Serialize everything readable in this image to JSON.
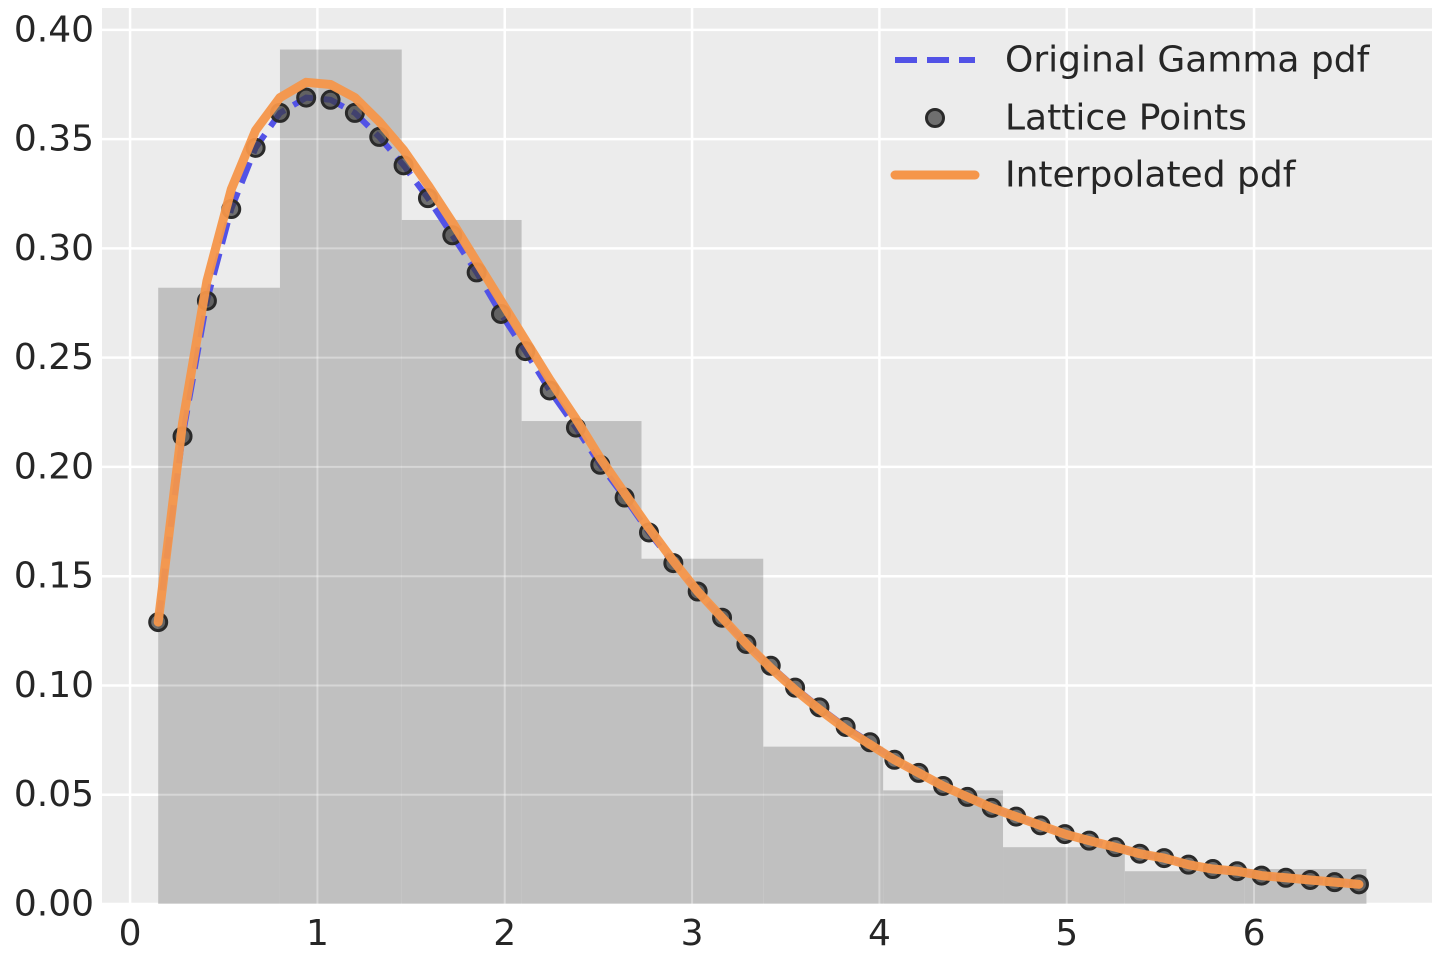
{
  "chart_data": {
    "type": "line",
    "title": "",
    "xlabel": "",
    "ylabel": "",
    "xlim": [
      -0.15,
      6.95
    ],
    "ylim": [
      0,
      0.41
    ],
    "grid": true,
    "legend_position": "top-right",
    "xticks": [
      0,
      1,
      2,
      3,
      4,
      5,
      6
    ],
    "xtick_labels": [
      "0",
      "1",
      "2",
      "3",
      "4",
      "5",
      "6"
    ],
    "yticks": [
      0,
      0.05,
      0.1,
      0.15,
      0.2,
      0.25,
      0.3,
      0.35,
      0.4
    ],
    "ytick_labels": [
      "0.00",
      "0.05",
      "0.10",
      "0.15",
      "0.20",
      "0.25",
      "0.30",
      "0.35",
      "0.40"
    ],
    "histogram": {
      "color": "#c0c0c0",
      "bins": [
        {
          "x0": 0.15,
          "x1": 0.8,
          "value": 0.282
        },
        {
          "x0": 0.8,
          "x1": 1.45,
          "value": 0.391
        },
        {
          "x0": 1.45,
          "x1": 2.09,
          "value": 0.313
        },
        {
          "x0": 2.09,
          "x1": 2.73,
          "value": 0.221
        },
        {
          "x0": 2.73,
          "x1": 3.38,
          "value": 0.158
        },
        {
          "x0": 3.38,
          "x1": 4.02,
          "value": 0.072
        },
        {
          "x0": 4.02,
          "x1": 4.66,
          "value": 0.052
        },
        {
          "x0": 4.66,
          "x1": 5.31,
          "value": 0.026
        },
        {
          "x0": 5.31,
          "x1": 5.95,
          "value": 0.015
        },
        {
          "x0": 5.95,
          "x1": 6.6,
          "value": 0.016
        }
      ]
    },
    "series": [
      {
        "name": "Original Gamma pdf",
        "style": "dashed",
        "color": "#5252e6",
        "x": [
          0.15,
          0.28,
          0.41,
          0.54,
          0.67,
          0.8,
          0.94,
          1.07,
          1.2,
          1.33,
          1.46,
          1.59,
          1.72,
          1.85,
          1.98,
          2.11,
          2.24,
          2.38,
          2.51,
          2.64,
          2.77,
          2.9,
          3.03,
          3.16,
          3.29,
          3.42,
          3.55,
          3.68,
          3.82,
          3.95,
          4.08,
          4.21,
          4.34,
          4.47,
          4.6,
          4.73,
          4.86,
          4.99,
          5.12,
          5.26,
          5.39,
          5.52,
          5.65,
          5.78,
          5.91,
          6.04,
          6.17,
          6.3,
          6.43,
          6.56
        ],
        "y": [
          0.129,
          0.214,
          0.276,
          0.318,
          0.346,
          0.362,
          0.369,
          0.368,
          0.362,
          0.351,
          0.338,
          0.323,
          0.306,
          0.289,
          0.27,
          0.253,
          0.235,
          0.218,
          0.201,
          0.186,
          0.17,
          0.156,
          0.143,
          0.131,
          0.119,
          0.109,
          0.099,
          0.09,
          0.081,
          0.074,
          0.066,
          0.06,
          0.054,
          0.049,
          0.044,
          0.04,
          0.036,
          0.032,
          0.029,
          0.026,
          0.023,
          0.021,
          0.018,
          0.016,
          0.015,
          0.013,
          0.012,
          0.011,
          0.01,
          0.009
        ]
      },
      {
        "name": "Lattice Points",
        "style": "markers",
        "color": "#4d4d4d",
        "x": [
          0.15,
          0.28,
          0.41,
          0.54,
          0.67,
          0.8,
          0.94,
          1.07,
          1.2,
          1.33,
          1.46,
          1.59,
          1.72,
          1.85,
          1.98,
          2.11,
          2.24,
          2.38,
          2.51,
          2.64,
          2.77,
          2.9,
          3.03,
          3.16,
          3.29,
          3.42,
          3.55,
          3.68,
          3.82,
          3.95,
          4.08,
          4.21,
          4.34,
          4.47,
          4.6,
          4.73,
          4.86,
          4.99,
          5.12,
          5.26,
          5.39,
          5.52,
          5.65,
          5.78,
          5.91,
          6.04,
          6.17,
          6.3,
          6.43,
          6.56
        ],
        "y": [
          0.129,
          0.214,
          0.276,
          0.318,
          0.346,
          0.362,
          0.369,
          0.368,
          0.362,
          0.351,
          0.338,
          0.323,
          0.306,
          0.289,
          0.27,
          0.253,
          0.235,
          0.218,
          0.201,
          0.186,
          0.17,
          0.156,
          0.143,
          0.131,
          0.119,
          0.109,
          0.099,
          0.09,
          0.081,
          0.074,
          0.066,
          0.06,
          0.054,
          0.049,
          0.044,
          0.04,
          0.036,
          0.032,
          0.029,
          0.026,
          0.023,
          0.021,
          0.018,
          0.016,
          0.015,
          0.013,
          0.012,
          0.011,
          0.01,
          0.009
        ]
      },
      {
        "name": "Interpolated pdf",
        "style": "solid",
        "color": "#f5964a",
        "x": [
          0.15,
          0.28,
          0.41,
          0.54,
          0.67,
          0.8,
          0.94,
          1.07,
          1.2,
          1.33,
          1.46,
          1.59,
          1.72,
          1.85,
          1.98,
          2.11,
          2.24,
          2.38,
          2.51,
          2.64,
          2.77,
          2.9,
          3.03,
          3.16,
          3.29,
          3.42,
          3.55,
          3.68,
          3.82,
          3.95,
          4.08,
          4.21,
          4.34,
          4.47,
          4.6,
          4.73,
          4.86,
          4.99,
          5.12,
          5.26,
          5.39,
          5.52,
          5.65,
          5.78,
          5.91,
          6.04,
          6.17,
          6.3,
          6.43,
          6.56
        ],
        "y": [
          0.129,
          0.22,
          0.285,
          0.327,
          0.354,
          0.369,
          0.376,
          0.375,
          0.369,
          0.358,
          0.345,
          0.329,
          0.312,
          0.294,
          0.276,
          0.258,
          0.24,
          0.222,
          0.204,
          0.188,
          0.172,
          0.157,
          0.143,
          0.131,
          0.119,
          0.108,
          0.098,
          0.089,
          0.08,
          0.073,
          0.066,
          0.06,
          0.054,
          0.049,
          0.044,
          0.04,
          0.036,
          0.032,
          0.029,
          0.026,
          0.023,
          0.021,
          0.018,
          0.016,
          0.015,
          0.013,
          0.012,
          0.011,
          0.01,
          0.009
        ]
      }
    ]
  }
}
